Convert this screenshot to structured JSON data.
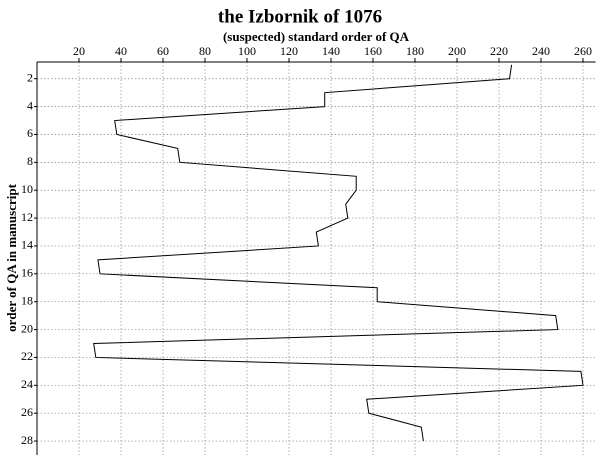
{
  "chart_data": {
    "type": "line",
    "title": "the Izbornik of 1076",
    "x_label": "(suspected) standard order of QA",
    "y_label": "order of QA in manuscript",
    "x": [
      226,
      225,
      137,
      137,
      37,
      38,
      67,
      68,
      152,
      152,
      147,
      148,
      133,
      134,
      29,
      30,
      162,
      162,
      247,
      248,
      27,
      28,
      259,
      260,
      157,
      158,
      183,
      184
    ],
    "y": [
      1,
      2,
      3,
      4,
      5,
      6,
      7,
      8,
      9,
      10,
      11,
      12,
      13,
      14,
      15,
      16,
      17,
      18,
      19,
      20,
      21,
      22,
      23,
      24,
      25,
      26,
      27,
      28
    ],
    "color": "#000000",
    "xlim": [
      0,
      266
    ],
    "xticks": [
      20,
      40,
      60,
      80,
      100,
      120,
      140,
      160,
      180,
      200,
      220,
      240,
      260
    ],
    "ylim": [
      0.8,
      29
    ],
    "yticks": [
      2,
      4,
      6,
      8,
      10,
      12,
      14,
      16,
      18,
      20,
      22,
      24,
      26,
      28
    ],
    "y_inverted": true,
    "x_axis_position": "top",
    "grid": true
  }
}
